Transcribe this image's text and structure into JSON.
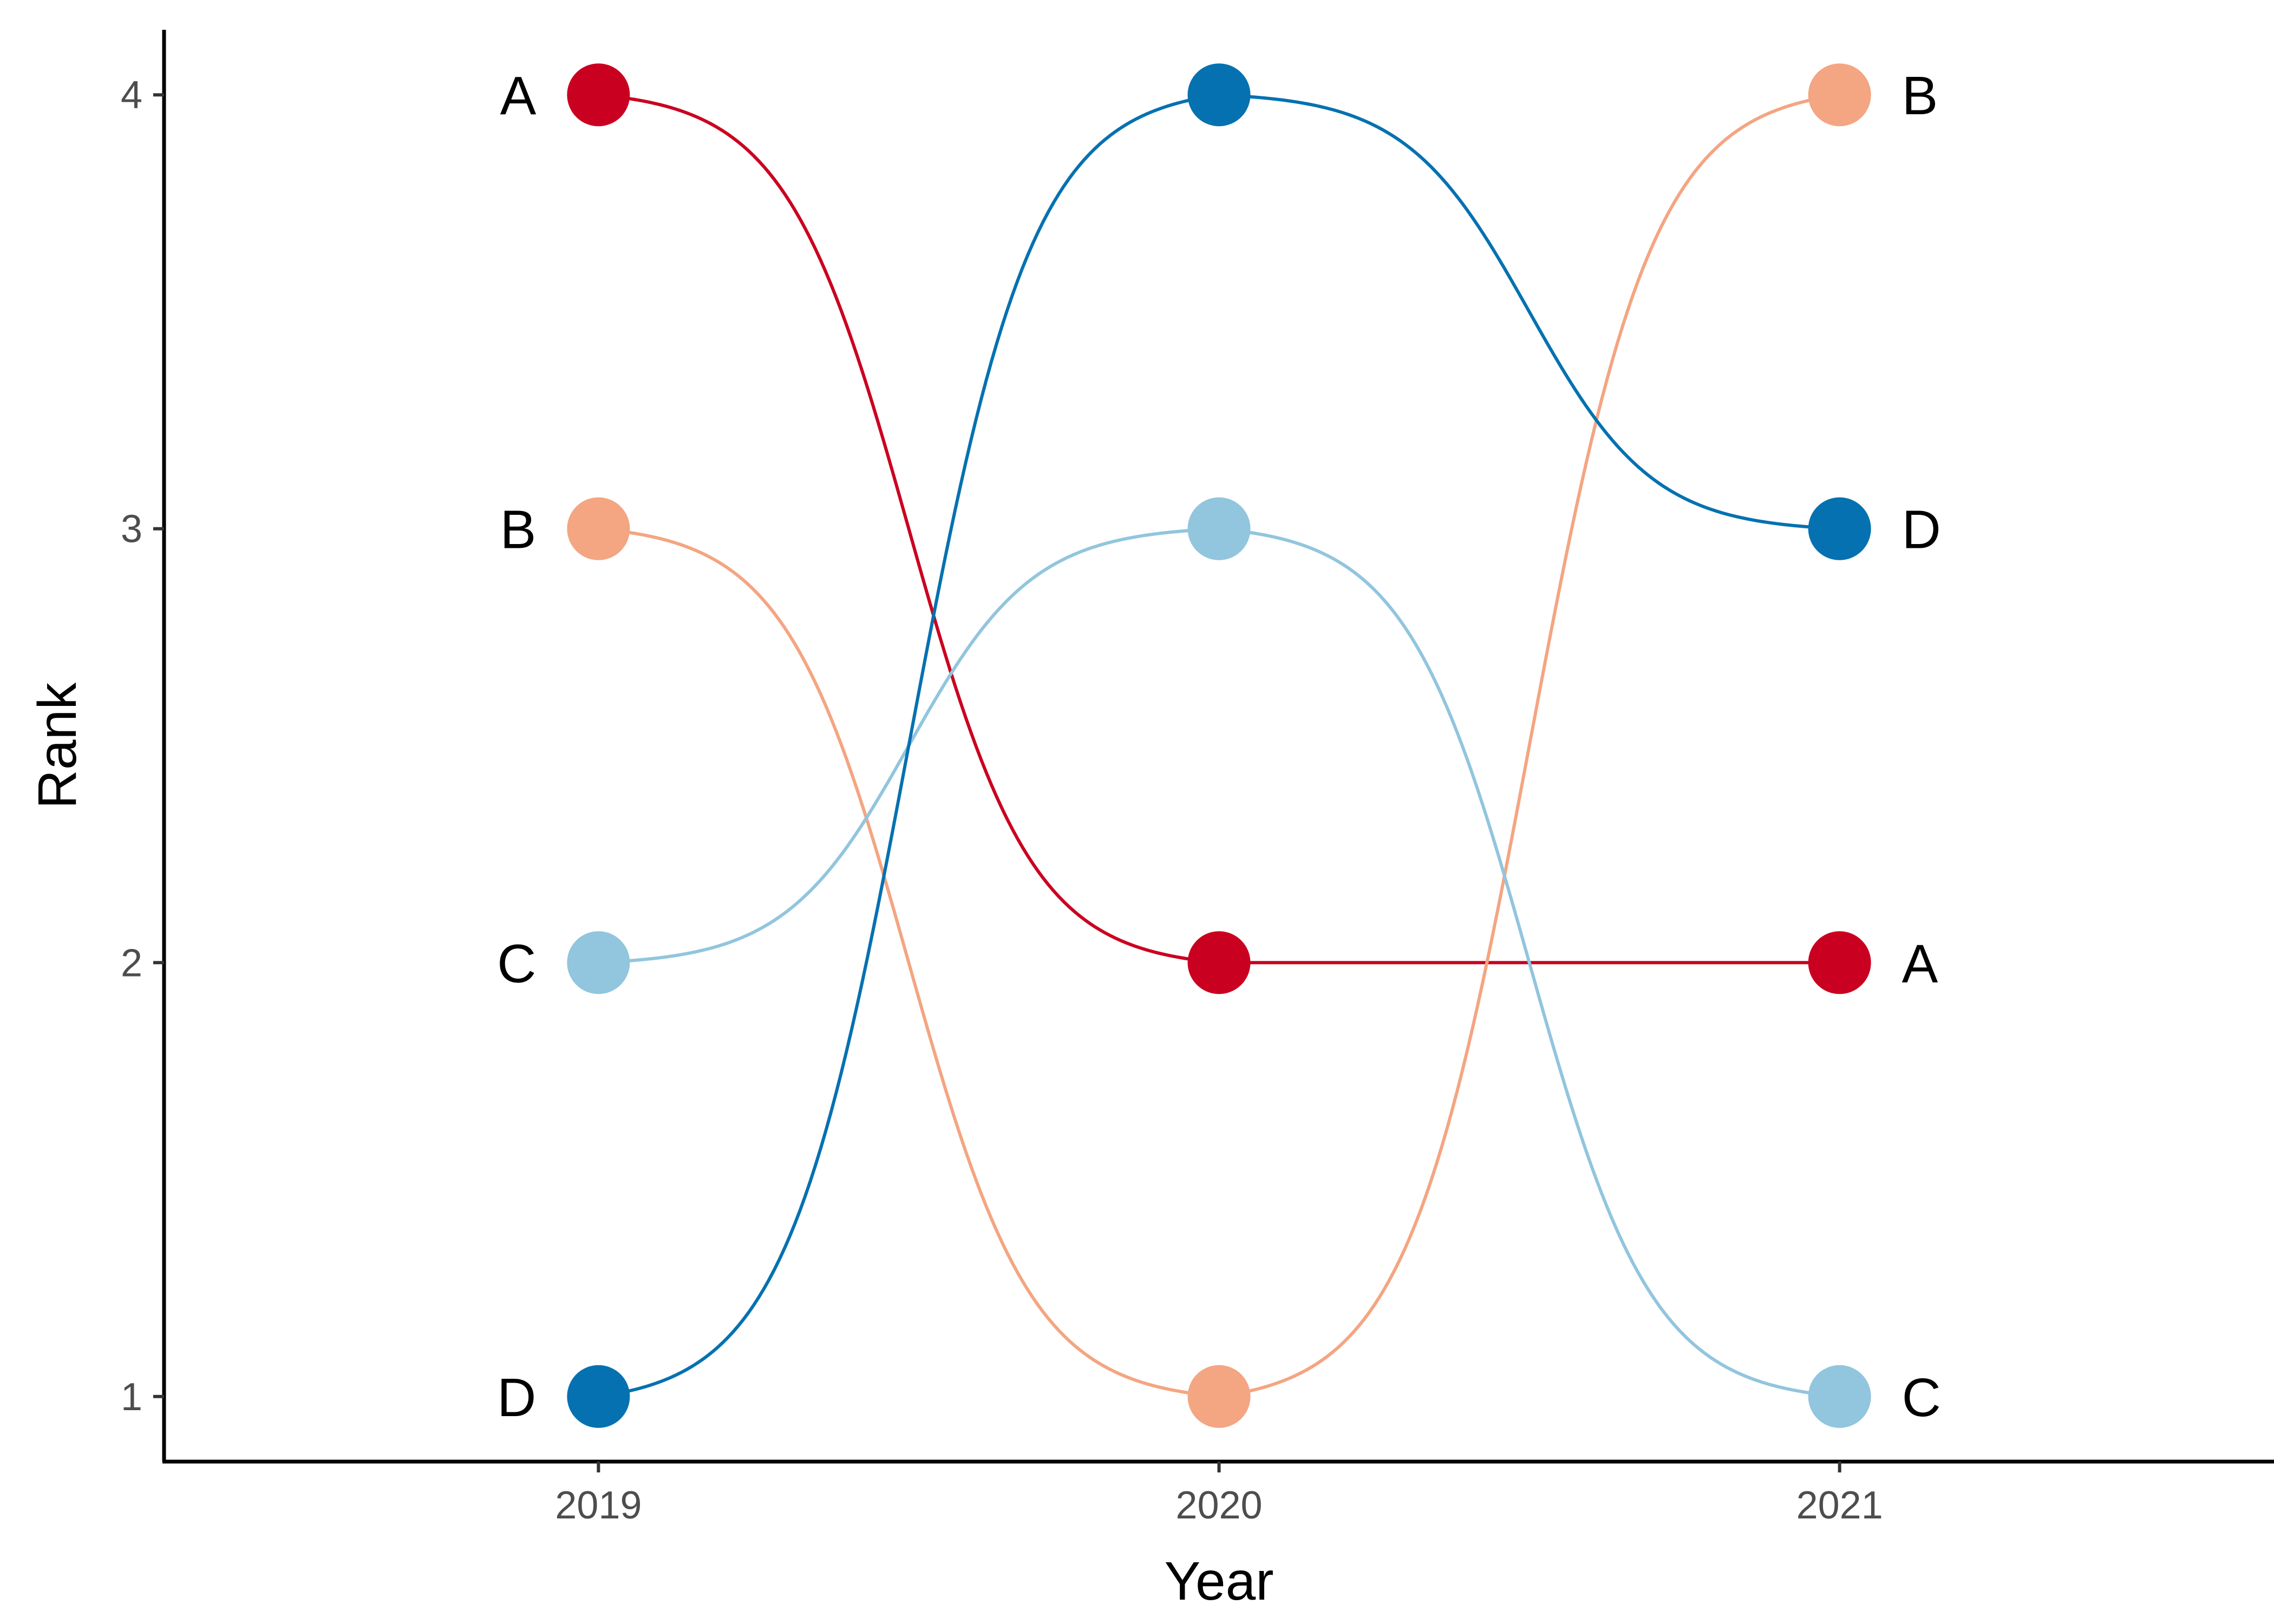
{
  "chart_data": {
    "type": "line",
    "subtype": "bump",
    "title": "",
    "xlabel": "Year",
    "ylabel": "Rank",
    "x": [
      2019,
      2020,
      2021
    ],
    "x_tick_labels": [
      "2019",
      "2020",
      "2021"
    ],
    "y_ticks": [
      1,
      2,
      3,
      4
    ],
    "y_tick_labels": [
      "1",
      "2",
      "3",
      "4"
    ],
    "xlim": [
      2018.3,
      2021.7
    ],
    "ylim": [
      0.85,
      4.15
    ],
    "grid": false,
    "legend": "none",
    "label_placement": "series labels at left of first point and right of last point",
    "series": [
      {
        "name": "A",
        "color": "#CA0020",
        "values": [
          4,
          2,
          2
        ]
      },
      {
        "name": "B",
        "color": "#F4A582",
        "values": [
          3,
          1,
          4
        ]
      },
      {
        "name": "C",
        "color": "#92C5DE",
        "values": [
          2,
          3,
          1
        ]
      },
      {
        "name": "D",
        "color": "#0571B0",
        "values": [
          1,
          4,
          3
        ]
      }
    ]
  }
}
